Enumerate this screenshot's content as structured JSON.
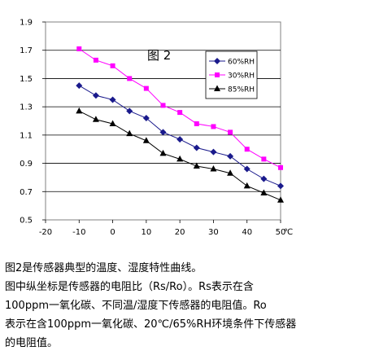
{
  "chart_data": {
    "type": "line",
    "title": "图 2",
    "xlabel": "",
    "ylabel": "",
    "x_unit": "℃",
    "xlim": [
      -20,
      50
    ],
    "ylim": [
      0.5,
      1.9
    ],
    "xticks": [
      -20,
      -10,
      0,
      10,
      20,
      30,
      40,
      50
    ],
    "yticks": [
      0.5,
      0.7,
      0.9,
      1.1,
      1.3,
      1.5,
      1.7,
      1.9
    ],
    "grid": true,
    "legend": "top-right",
    "x": [
      -10,
      -5,
      0,
      5,
      10,
      15,
      20,
      25,
      30,
      35,
      40,
      45,
      50
    ],
    "series": [
      {
        "name": "60%RH",
        "marker": "diamond",
        "color": "#1a1a8c",
        "values": [
          1.45,
          1.38,
          1.35,
          1.27,
          1.22,
          1.12,
          1.07,
          1.01,
          0.98,
          0.95,
          0.86,
          0.79,
          0.74
        ]
      },
      {
        "name": "30%RH",
        "marker": "square",
        "color": "#ff00ff",
        "values": [
          1.71,
          1.63,
          1.59,
          1.5,
          1.43,
          1.31,
          1.26,
          1.18,
          1.16,
          1.12,
          1.0,
          0.93,
          0.87
        ]
      },
      {
        "name": "85%RH",
        "marker": "triangle",
        "color": "#000000",
        "values": [
          1.27,
          1.21,
          1.18,
          1.11,
          1.06,
          0.97,
          0.93,
          0.88,
          0.86,
          0.83,
          0.74,
          0.69,
          0.64
        ]
      }
    ]
  },
  "caption": {
    "line1": "图2是传感器典型的温度、湿度特性曲线。",
    "line2": "图中纵坐标是传感器的电阻比（Rs/Ro）。Rs表示在含",
    "line3": "100ppm一氧化碳、不同温/湿度下传感器的电阻值。Ro",
    "line4": "表示在含100ppm一氧化碳、20℃/65%RH环境条件下传感器",
    "line5": "的电阻值。"
  }
}
